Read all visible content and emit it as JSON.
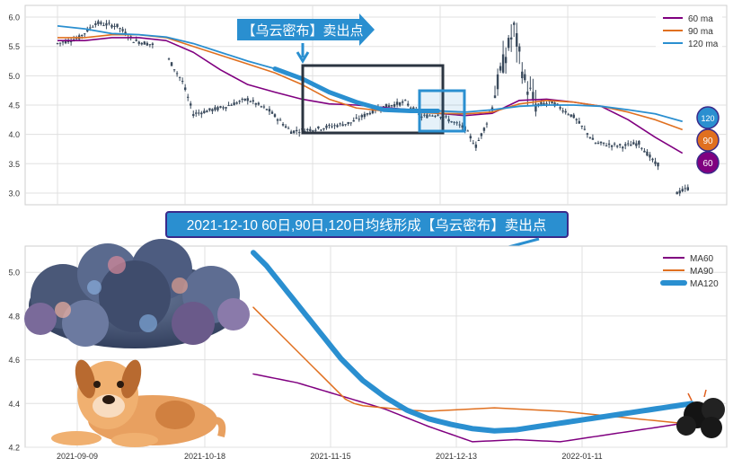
{
  "annotations": {
    "top_callout": "【乌云密布】卖出点",
    "mid_banner": "2021-12-10 60日,90日,120日均线形成【乌云密布】卖出点",
    "badge_120": "120",
    "badge_90": "90",
    "badge_60": "60"
  },
  "colors": {
    "ma60": "#800080",
    "ma90": "#e07020",
    "ma120": "#2a8fd0",
    "candle": "#3a4a5c",
    "banner_bg": "#2a8fd0",
    "banner_border": "#3a2a8a",
    "box_dark": "#2b3440",
    "box_blue": "#2a8fd0"
  },
  "icons": [
    "dark-cloud-illustration",
    "dog-illustration",
    "storm-cloud-icon",
    "down-arrow-icon",
    "pointer-arrow-icon"
  ],
  "chart_data": [
    {
      "type": "candlestick",
      "title": "",
      "ylim": [
        2.8,
        6.2
      ],
      "yticks": [
        "3.0",
        "3.5",
        "4.0",
        "4.5",
        "5.0",
        "5.5",
        "6.0"
      ],
      "grid": true,
      "legend_position": "top-right",
      "series": [
        {
          "name": "60 ma",
          "color": "#800080",
          "x": [
            0,
            10,
            20,
            30,
            40,
            50,
            60,
            70,
            80,
            90,
            100,
            110,
            120,
            130,
            140,
            150,
            160,
            170,
            180,
            190,
            200,
            210,
            220,
            230
          ],
          "values": [
            5.6,
            5.6,
            5.65,
            5.65,
            5.6,
            5.4,
            5.1,
            4.85,
            4.72,
            4.6,
            4.52,
            4.5,
            4.46,
            4.42,
            4.36,
            4.32,
            4.36,
            4.58,
            4.6,
            4.55,
            4.48,
            4.25,
            3.95,
            3.68
          ]
        },
        {
          "name": "90 ma",
          "color": "#e07020",
          "x": [
            0,
            10,
            20,
            30,
            40,
            50,
            60,
            70,
            80,
            90,
            100,
            110,
            120,
            130,
            140,
            150,
            160,
            170,
            180,
            190,
            200,
            210,
            220,
            230
          ],
          "values": [
            5.65,
            5.65,
            5.7,
            5.7,
            5.65,
            5.5,
            5.35,
            5.2,
            5.05,
            4.85,
            4.6,
            4.45,
            4.4,
            4.38,
            4.36,
            4.35,
            4.38,
            4.52,
            4.58,
            4.55,
            4.48,
            4.38,
            4.25,
            4.08
          ]
        },
        {
          "name": "120 ma",
          "color": "#2a8fd0",
          "x": [
            0,
            10,
            20,
            30,
            40,
            50,
            60,
            70,
            80,
            90,
            100,
            110,
            120,
            130,
            140,
            150,
            160,
            170,
            180,
            190,
            200,
            210,
            220,
            230
          ],
          "values": [
            5.85,
            5.8,
            5.72,
            5.7,
            5.66,
            5.55,
            5.4,
            5.25,
            5.12,
            4.95,
            4.72,
            4.55,
            4.42,
            4.4,
            4.4,
            4.38,
            4.42,
            4.48,
            4.5,
            4.5,
            4.48,
            4.42,
            4.35,
            4.22
          ]
        }
      ]
    },
    {
      "type": "line",
      "title": "",
      "xticklabels": [
        "2021-09-09",
        "2021-10-18",
        "2021-11-15",
        "2021-12-13",
        "2022-01-11"
      ],
      "yticks": [
        "4.2",
        "4.4",
        "4.6",
        "4.8",
        "5.0"
      ],
      "ylim": [
        4.2,
        5.12
      ],
      "grid": true,
      "legend_position": "top-right",
      "x": [
        0,
        1,
        2,
        3,
        4,
        5,
        6,
        7,
        8,
        9,
        10,
        11,
        12,
        13,
        14,
        15,
        16,
        17,
        18,
        19,
        20,
        21,
        22,
        23,
        24,
        25,
        26,
        27,
        28,
        29,
        30,
        31,
        32,
        33,
        34,
        35,
        36,
        37,
        38,
        39,
        40,
        41,
        42,
        43,
        44,
        45,
        46,
        47,
        48,
        49,
        50,
        51,
        52,
        53,
        54,
        55,
        56,
        57,
        58,
        59,
        60,
        61,
        62,
        63,
        64,
        65,
        66,
        67,
        68,
        69,
        70,
        71,
        72,
        73,
        74,
        75,
        76,
        77,
        78,
        79,
        80,
        81,
        82,
        83,
        84,
        85,
        86,
        87,
        88,
        89,
        90,
        91,
        92,
        93,
        94,
        95,
        96,
        97,
        98,
        99,
        100
      ],
      "series": [
        {
          "name": "MA60",
          "color": "#800080",
          "values": [
            4.535,
            4.531,
            4.527,
            4.523,
            4.519,
            4.515,
            4.511,
            4.507,
            4.503,
            4.499,
            4.495,
            4.489,
            4.483,
            4.477,
            4.471,
            4.465,
            4.459,
            4.453,
            4.447,
            4.441,
            4.435,
            4.429,
            4.423,
            4.417,
            4.411,
            4.405,
            4.399,
            4.393,
            4.387,
            4.381,
            4.375,
            4.367,
            4.359,
            4.351,
            4.343,
            4.335,
            4.327,
            4.319,
            4.311,
            4.303,
            4.295,
            4.288,
            4.281,
            4.274,
            4.267,
            4.26,
            4.253,
            4.246,
            4.239,
            4.232,
            4.225,
            4.226,
            4.227,
            4.228,
            4.229,
            4.23,
            4.231,
            4.232,
            4.233,
            4.234,
            4.235,
            4.234,
            4.233,
            4.232,
            4.231,
            4.23,
            4.229,
            4.228,
            4.227,
            4.226,
            4.225,
            4.228,
            4.231,
            4.234,
            4.237,
            4.24,
            4.243,
            4.246,
            4.249,
            4.252,
            4.255,
            4.258,
            4.261,
            4.264,
            4.267,
            4.27,
            4.273,
            4.276,
            4.279,
            4.282,
            4.285,
            4.288,
            4.291,
            4.294,
            4.297,
            4.3,
            4.303,
            4.306,
            4.309,
            4.312,
            4.315
          ]
        },
        {
          "name": "MA90",
          "color": "#e07020",
          "values": [
            4.84,
            4.82,
            4.8,
            4.78,
            4.76,
            4.74,
            4.72,
            4.7,
            4.68,
            4.66,
            4.64,
            4.62,
            4.6,
            4.58,
            4.56,
            4.54,
            4.52,
            4.5,
            4.48,
            4.46,
            4.44,
            4.42,
            4.41,
            4.4,
            4.395,
            4.39,
            4.388,
            4.386,
            4.384,
            4.382,
            4.38,
            4.378,
            4.376,
            4.374,
            4.372,
            4.37,
            4.369,
            4.368,
            4.367,
            4.366,
            4.365,
            4.366,
            4.367,
            4.368,
            4.369,
            4.37,
            4.371,
            4.372,
            4.373,
            4.374,
            4.375,
            4.376,
            4.377,
            4.378,
            4.379,
            4.38,
            4.379,
            4.378,
            4.377,
            4.376,
            4.375,
            4.374,
            4.373,
            4.372,
            4.371,
            4.37,
            4.369,
            4.368,
            4.367,
            4.366,
            4.365,
            4.363,
            4.361,
            4.359,
            4.357,
            4.355,
            4.353,
            4.351,
            4.349,
            4.347,
            4.345,
            4.343,
            4.341,
            4.339,
            4.337,
            4.335,
            4.333,
            4.331,
            4.329,
            4.327,
            4.325,
            4.323,
            4.321,
            4.319,
            4.317,
            4.315,
            4.313,
            4.311,
            4.309,
            4.307,
            4.305
          ]
        },
        {
          "name": "MA120",
          "color": "#2a8fd0",
          "values": [
            5.09,
            5.07,
            5.05,
            5.03,
            5.005,
            4.98,
            4.955,
            4.93,
            4.905,
            4.88,
            4.855,
            4.83,
            4.805,
            4.78,
            4.755,
            4.73,
            4.705,
            4.68,
            4.655,
            4.63,
            4.605,
            4.585,
            4.565,
            4.545,
            4.525,
            4.505,
            4.49,
            4.475,
            4.46,
            4.445,
            4.43,
            4.418,
            4.406,
            4.394,
            4.382,
            4.37,
            4.362,
            4.354,
            4.346,
            4.338,
            4.33,
            4.325,
            4.32,
            4.315,
            4.31,
            4.305,
            4.301,
            4.297,
            4.293,
            4.289,
            4.285,
            4.283,
            4.281,
            4.279,
            4.277,
            4.275,
            4.276,
            4.277,
            4.278,
            4.279,
            4.28,
            4.283,
            4.286,
            4.289,
            4.292,
            4.295,
            4.298,
            4.301,
            4.304,
            4.307,
            4.31,
            4.313,
            4.316,
            4.319,
            4.322,
            4.325,
            4.328,
            4.331,
            4.334,
            4.337,
            4.34,
            4.343,
            4.346,
            4.349,
            4.352,
            4.355,
            4.358,
            4.361,
            4.364,
            4.367,
            4.37,
            4.373,
            4.376,
            4.379,
            4.382,
            4.385,
            4.388,
            4.391,
            4.394,
            4.397,
            4.4
          ]
        }
      ]
    }
  ]
}
